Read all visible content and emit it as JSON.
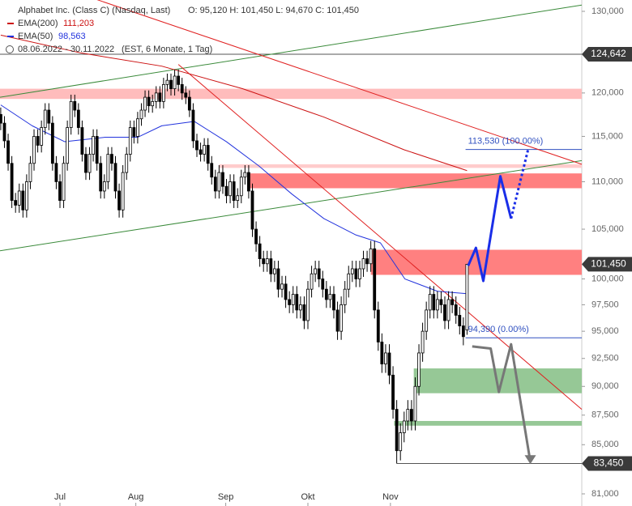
{
  "chart_data": {
    "type": "candlestick",
    "legend": {
      "title": "Alphabet Inc. (Class C) (Nasdaq, Last)",
      "ohlc": "O: 95,120  H: 101,450  L: 94,670  C: 101,450",
      "ema200": "EMA(200)",
      "ema200_value": "111,203",
      "ema50": "EMA(50)",
      "ema50_value": "98,563",
      "range": "08.06.2022 - 30.11.2022",
      "period": "(EST, 6 Monate, 1 Tag)"
    },
    "log_scale": true,
    "ylim": [
      81000,
      130000
    ],
    "xlim": [
      -0.2,
      157
    ],
    "yticks": [
      {
        "value": 130000,
        "label": "130,000"
      },
      {
        "value": 120000,
        "label": "120,000"
      },
      {
        "value": 115000,
        "label": "115,000"
      },
      {
        "value": 110000,
        "label": "110,000"
      },
      {
        "value": 105000,
        "label": "105,000"
      },
      {
        "value": 100000,
        "label": "100,000"
      },
      {
        "value": 97500,
        "label": "97,500"
      },
      {
        "value": 95000,
        "label": "95,000"
      },
      {
        "value": 92500,
        "label": "92,500"
      },
      {
        "value": 90000,
        "label": "90,000"
      },
      {
        "value": 87500,
        "label": "87,500"
      },
      {
        "value": 85000,
        "label": "85,000"
      },
      {
        "value": 81000,
        "label": "81,000"
      }
    ],
    "xticks": [
      {
        "value": 16,
        "label": "Jul"
      },
      {
        "value": 36.5,
        "label": "Aug"
      },
      {
        "value": 60.8,
        "label": "Sep"
      },
      {
        "value": 83,
        "label": "Okt"
      },
      {
        "value": 105.3,
        "label": "Nov"
      }
    ],
    "up_color": "#ffffff",
    "down_color": "#000000",
    "ohlc": [
      [
        117500,
        118300,
        115700,
        116500
      ],
      [
        116500,
        117300,
        113700,
        114500
      ],
      [
        114500,
        115300,
        111200,
        112000
      ],
      [
        112000,
        112800,
        107200,
        108000
      ],
      [
        108000,
        108800,
        106700,
        107500
      ],
      [
        107500,
        109800,
        106700,
        109000
      ],
      [
        109000,
        109800,
        106200,
        107000
      ],
      [
        107000,
        110800,
        106200,
        110000
      ],
      [
        110000,
        112800,
        109200,
        112000
      ],
      [
        112000,
        115800,
        111200,
        115000
      ],
      [
        115000,
        115800,
        113200,
        114000
      ],
      [
        114000,
        116800,
        113200,
        116000
      ],
      [
        116000,
        118800,
        115200,
        118000
      ],
      [
        118000,
        118800,
        115700,
        116500
      ],
      [
        116500,
        117300,
        111200,
        112000
      ],
      [
        112000,
        112800,
        109200,
        110000
      ],
      [
        110000,
        110800,
        107200,
        108000
      ],
      [
        108000,
        112800,
        107200,
        112000
      ],
      [
        112000,
        116800,
        111200,
        116000
      ],
      [
        116000,
        119800,
        115200,
        119000
      ],
      [
        119000,
        119800,
        117200,
        118000
      ],
      [
        118000,
        118800,
        115200,
        116000
      ],
      [
        116000,
        116800,
        112200,
        113000
      ],
      [
        113000,
        113800,
        110200,
        111000
      ],
      [
        111000,
        113800,
        110200,
        113000
      ],
      [
        113000,
        115800,
        112200,
        115000
      ],
      [
        115000,
        115800,
        111200,
        112000
      ],
      [
        112000,
        112800,
        108200,
        109000
      ],
      [
        109000,
        110800,
        108200,
        110000
      ],
      [
        110000,
        113800,
        109200,
        113000
      ],
      [
        113000,
        113800,
        111200,
        112000
      ],
      [
        112000,
        112800,
        108200,
        109000
      ],
      [
        109000,
        109800,
        106200,
        107000
      ],
      [
        107000,
        111800,
        106200,
        111000
      ],
      [
        111000,
        113800,
        110200,
        113000
      ],
      [
        113000,
        116800,
        112200,
        116000
      ],
      [
        116000,
        116800,
        114200,
        115000
      ],
      [
        115000,
        117800,
        114200,
        117000
      ],
      [
        117000,
        118800,
        116200,
        118000
      ],
      [
        118000,
        120300,
        117200,
        119500
      ],
      [
        119500,
        120300,
        117700,
        118500
      ],
      [
        118500,
        119800,
        117700,
        119000
      ],
      [
        119000,
        120800,
        118200,
        120000
      ],
      [
        120000,
        120800,
        118200,
        119000
      ],
      [
        119000,
        121800,
        118200,
        121000
      ],
      [
        121000,
        122300,
        120200,
        121500
      ],
      [
        121500,
        122300,
        119700,
        120500
      ],
      [
        120500,
        122800,
        119700,
        122000
      ],
      [
        122000,
        122800,
        120200,
        121000
      ],
      [
        121000,
        121800,
        119200,
        120000
      ],
      [
        120000,
        120800,
        118700,
        119500
      ],
      [
        119500,
        120300,
        117200,
        118000
      ],
      [
        118000,
        118800,
        113700,
        114500
      ],
      [
        114500,
        115300,
        112700,
        113500
      ],
      [
        113500,
        114300,
        112200,
        113000
      ],
      [
        113000,
        114800,
        112200,
        114000
      ],
      [
        114000,
        114800,
        111200,
        112000
      ],
      [
        112000,
        112800,
        109700,
        110500
      ],
      [
        110500,
        111300,
        108200,
        109000
      ],
      [
        109000,
        111800,
        108200,
        111000
      ],
      [
        111000,
        111800,
        108700,
        109500
      ],
      [
        109500,
        110300,
        107700,
        108500
      ],
      [
        108500,
        110800,
        107700,
        110000
      ],
      [
        110000,
        110800,
        107200,
        108000
      ],
      [
        108000,
        109300,
        107200,
        108500
      ],
      [
        108500,
        111300,
        107700,
        110500
      ],
      [
        110500,
        111800,
        109700,
        111000
      ],
      [
        111000,
        111800,
        108200,
        109000
      ],
      [
        109000,
        109800,
        104200,
        105000
      ],
      [
        105000,
        105800,
        102700,
        103500
      ],
      [
        103500,
        104300,
        101200,
        102000
      ],
      [
        102000,
        102800,
        100700,
        101500
      ],
      [
        101500,
        102800,
        100700,
        102000
      ],
      [
        102000,
        102800,
        99700,
        100500
      ],
      [
        100500,
        101800,
        99700,
        101000
      ],
      [
        101000,
        101800,
        98200,
        99000
      ],
      [
        99000,
        100300,
        98200,
        99500
      ],
      [
        99500,
        100300,
        97200,
        98000
      ],
      [
        98000,
        98800,
        96700,
        97500
      ],
      [
        97500,
        99300,
        96700,
        98500
      ],
      [
        98500,
        99300,
        96200,
        97000
      ],
      [
        97000,
        98300,
        96200,
        97500
      ],
      [
        97500,
        98300,
        95200,
        96000
      ],
      [
        96000,
        99800,
        95200,
        99000
      ],
      [
        99000,
        101300,
        98200,
        100500
      ],
      [
        100500,
        101800,
        99700,
        101000
      ],
      [
        101000,
        101800,
        99200,
        100000
      ],
      [
        100000,
        100800,
        98200,
        99000
      ],
      [
        99000,
        99800,
        97200,
        98000
      ],
      [
        98000,
        99300,
        97200,
        98500
      ],
      [
        98500,
        99300,
        96200,
        97000
      ],
      [
        97000,
        97800,
        94200,
        95000
      ],
      [
        95000,
        98300,
        94200,
        97500
      ],
      [
        97500,
        99800,
        96700,
        99000
      ],
      [
        99000,
        101300,
        98200,
        100500
      ],
      [
        100500,
        101800,
        99700,
        101000
      ],
      [
        101000,
        101800,
        99200,
        100000
      ],
      [
        100000,
        101800,
        99200,
        101000
      ],
      [
        101000,
        102800,
        100200,
        102000
      ],
      [
        102000,
        102800,
        100700,
        101500
      ],
      [
        101500,
        103800,
        100700,
        103000
      ],
      [
        103000,
        103800,
        96200,
        97000
      ],
      [
        97000,
        97800,
        93200,
        94000
      ],
      [
        94000,
        94800,
        91200,
        92000
      ],
      [
        92000,
        93800,
        91200,
        93000
      ],
      [
        93000,
        93800,
        90200,
        91000
      ],
      [
        91000,
        91800,
        87200,
        88000
      ],
      [
        88000,
        88800,
        83450,
        84500
      ],
      [
        84500,
        86800,
        83700,
        86000
      ],
      [
        86000,
        87800,
        85200,
        87000
      ],
      [
        87000,
        88800,
        86200,
        88000
      ],
      [
        88000,
        88800,
        86200,
        87000
      ],
      [
        87000,
        90800,
        86200,
        90000
      ],
      [
        90000,
        93800,
        89200,
        93000
      ],
      [
        93000,
        95800,
        92200,
        95000
      ],
      [
        95000,
        97800,
        94200,
        97000
      ],
      [
        97000,
        99300,
        96200,
        98500
      ],
      [
        98500,
        99300,
        96200,
        97000
      ],
      [
        97000,
        98800,
        96200,
        98000
      ],
      [
        98000,
        98800,
        96700,
        97500
      ],
      [
        97500,
        98300,
        95200,
        96000
      ],
      [
        96000,
        98800,
        95200,
        98000
      ],
      [
        98000,
        98800,
        96700,
        97500
      ],
      [
        97500,
        98300,
        95700,
        96500
      ],
      [
        96500,
        97300,
        94700,
        95500
      ],
      [
        95500,
        96300,
        93700,
        94500
      ],
      [
        95120,
        101450,
        94670,
        101450
      ]
    ],
    "series": [
      {
        "name": "EMA(200)",
        "color": "#cc1111",
        "x": [
          0,
          21.7,
          43.5,
          65.4,
          87.3,
          109,
          126
        ],
        "values": [
          127000,
          124800,
          123200,
          120500,
          117200,
          113500,
          111203
        ]
      },
      {
        "name": "EMA(50)",
        "color": "#2233dd",
        "x": [
          0,
          8.5,
          17.3,
          28.2,
          37,
          43.5,
          52.3,
          61,
          69.8,
          78.6,
          87.3,
          96,
          102.6,
          109.2,
          118,
          126
        ],
        "values": [
          118600,
          116200,
          114400,
          114900,
          114900,
          116200,
          116700,
          114400,
          111700,
          108700,
          106100,
          104400,
          103600,
          100000,
          98800,
          98563
        ]
      }
    ],
    "zones": [
      {
        "low": 119300,
        "high": 120500,
        "from": -0.2,
        "color": "#ffbcbc"
      },
      {
        "low": 111500,
        "high": 111900,
        "from": 59,
        "color": "#ffcccc"
      },
      {
        "low": 109300,
        "high": 110900,
        "from": 67.2,
        "color": "#ff8080"
      },
      {
        "low": 100400,
        "high": 102900,
        "from": 100,
        "color": "#ff8080"
      },
      {
        "low": 89400,
        "high": 91600,
        "from": 111.6,
        "color": "#96c896"
      },
      {
        "low": 86600,
        "high": 87000,
        "from": 106.3,
        "color": "#96c896"
      }
    ],
    "trendlines": [
      {
        "x": [
          -0.2,
          157
        ],
        "values": [
          119500,
          130800
        ],
        "color": "#3a8a3a"
      },
      {
        "x": [
          -0.2,
          157
        ],
        "values": [
          102800,
          112300
        ],
        "color": "#3a8a3a"
      },
      {
        "x": [
          26,
          157
        ],
        "values": [
          131500,
          111900
        ],
        "color": "#e02020"
      },
      {
        "x": [
          48,
          157
        ],
        "values": [
          123400,
          88000
        ],
        "color": "#e02020"
      }
    ],
    "levels": [
      {
        "value": 124642,
        "from": -0.2,
        "color": "#555555"
      },
      {
        "value": 83450,
        "from": 107,
        "color": "#555555"
      },
      {
        "value": 94390,
        "from": 125.6,
        "color": "#3050c0",
        "label": "94,390 (0.00%)"
      },
      {
        "value": 113530,
        "from": 125.6,
        "color": "#3050c0",
        "label": "113,530 (100.00%)"
      }
    ],
    "price_tags": [
      {
        "value": 124642,
        "label": "124,642"
      },
      {
        "value": 101450,
        "label": "101,450"
      },
      {
        "value": 83450,
        "label": "83,450"
      }
    ],
    "projections": [
      {
        "x": [
          126.3,
          128.4,
          130.4,
          135,
          137.9
        ],
        "values": [
          101300,
          103100,
          99800,
          110600,
          106100
        ],
        "color": "#1a2ee8",
        "dotted": false
      },
      {
        "x": [
          137.9,
          142.5
        ],
        "values": [
          106100,
          113530
        ],
        "color": "#1a2ee8",
        "dotted": true
      },
      {
        "x": [
          127.4,
          132.4,
          134.6,
          137.9,
          143.1
        ],
        "values": [
          93600,
          93400,
          89500,
          93800,
          83600
        ],
        "color": "#777777",
        "dotted": false
      }
    ]
  }
}
